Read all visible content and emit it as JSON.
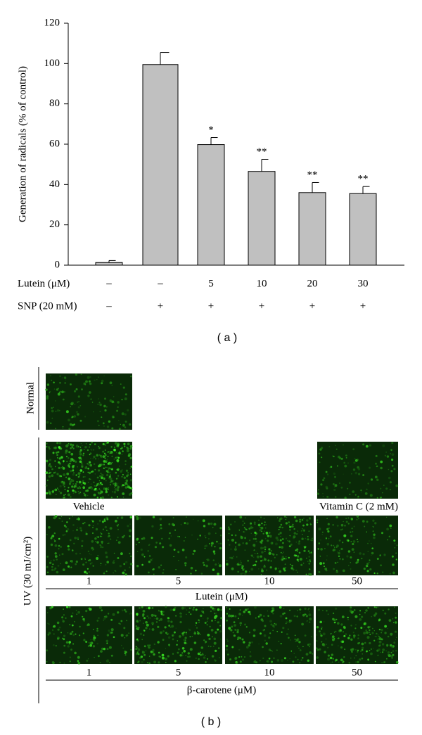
{
  "chart_data": {
    "type": "bar",
    "y_label": "Generation of radicals (% of control)",
    "categories": [
      "–",
      "–",
      "5",
      "10",
      "20",
      "30"
    ],
    "row_labels": [
      "Lutein (μM)",
      "SNP (20 mM)"
    ],
    "second_row": [
      "–",
      "+",
      "+",
      "+",
      "+",
      "+"
    ],
    "values": [
      1.3,
      99.5,
      59.8,
      46.5,
      36,
      35.5
    ],
    "errors": [
      1,
      6,
      3.5,
      6,
      5,
      3.5
    ],
    "annotations": [
      null,
      null,
      "*",
      "**",
      "**",
      "**"
    ],
    "color": "#c0c0c0",
    "ylim": [
      0,
      120
    ],
    "yticks": [
      0,
      20,
      40,
      60,
      80,
      100,
      120
    ],
    "panel_label": "( a )"
  },
  "panel_b": {
    "panel_label": "( b )",
    "normal_label": "Normal",
    "uv_label": "UV (30 mJ/cm²)",
    "vehicle_label": "Vehicle",
    "vitamin_c_label": "Vitamin C (2 mM)",
    "lutein": {
      "label": "Lutein (μM)",
      "concentrations": [
        1,
        5,
        10,
        50
      ]
    },
    "beta_carotene": {
      "label": "β-carotene (μM)",
      "concentrations": [
        1,
        5,
        10,
        50
      ]
    }
  }
}
